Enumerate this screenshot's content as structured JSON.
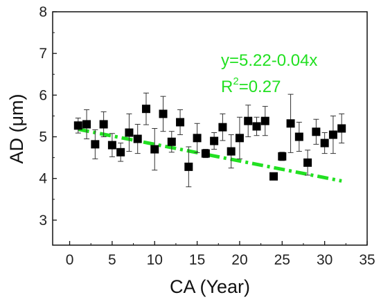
{
  "chart_data": {
    "type": "scatter",
    "xlabel": "CA (Year)",
    "ylabel": "AD (μm)",
    "xlim": [
      -2,
      35
    ],
    "ylim": [
      2.4,
      8
    ],
    "x_ticks": [
      0,
      5,
      10,
      15,
      20,
      25,
      30,
      35
    ],
    "y_ticks": [
      3,
      4,
      5,
      6,
      7,
      8
    ],
    "grid": false,
    "points": [
      {
        "x": 1,
        "y": 5.27,
        "err": 0.18
      },
      {
        "x": 2,
        "y": 5.3,
        "err": 0.35
      },
      {
        "x": 3,
        "y": 4.82,
        "err": 0.35
      },
      {
        "x": 4,
        "y": 5.3,
        "err": 0.3
      },
      {
        "x": 5,
        "y": 4.8,
        "err": 0.28
      },
      {
        "x": 6,
        "y": 4.63,
        "err": 0.22
      },
      {
        "x": 7,
        "y": 5.1,
        "err": 0.45
      },
      {
        "x": 8,
        "y": 4.95,
        "err": 0.35
      },
      {
        "x": 9,
        "y": 5.67,
        "err": 0.38
      },
      {
        "x": 10,
        "y": 4.7,
        "err": 0.5
      },
      {
        "x": 11,
        "y": 5.55,
        "err": 0.42
      },
      {
        "x": 12,
        "y": 4.88,
        "err": 0.25
      },
      {
        "x": 13,
        "y": 5.35,
        "err": 0.3
      },
      {
        "x": 14,
        "y": 4.28,
        "err": 0.48
      },
      {
        "x": 15,
        "y": 4.97,
        "err": 0.35
      },
      {
        "x": 16,
        "y": 4.6,
        "err": 0.1
      },
      {
        "x": 17,
        "y": 4.9,
        "err": 0.2
      },
      {
        "x": 18,
        "y": 5.23,
        "err": 0.32
      },
      {
        "x": 19,
        "y": 4.65,
        "err": 0.4
      },
      {
        "x": 20,
        "y": 4.97,
        "err": 0.5
      },
      {
        "x": 21,
        "y": 5.38,
        "err": 0.38
      },
      {
        "x": 22,
        "y": 5.25,
        "err": 0.22
      },
      {
        "x": 23,
        "y": 5.38,
        "err": 0.35
      },
      {
        "x": 24,
        "y": 4.05,
        "err": 0.0
      },
      {
        "x": 25,
        "y": 4.53,
        "err": 0.1
      },
      {
        "x": 26,
        "y": 5.32,
        "err": 0.7
      },
      {
        "x": 27,
        "y": 5.0,
        "err": 0.35
      },
      {
        "x": 28,
        "y": 4.38,
        "err": 0.3
      },
      {
        "x": 29,
        "y": 5.12,
        "err": 0.3
      },
      {
        "x": 30,
        "y": 4.85,
        "err": 0.25
      },
      {
        "x": 31,
        "y": 5.05,
        "err": 0.45
      },
      {
        "x": 32,
        "y": 5.2,
        "err": 0.35
      }
    ],
    "fit_line": {
      "intercept": 5.22,
      "slope": -0.04,
      "x_range": [
        1,
        32
      ],
      "color": "#22e022",
      "style": "dash-dot"
    },
    "marker_color": "#000000",
    "annotation": {
      "equation": "y=5.22-0.04x",
      "r2_prefix": "R",
      "r2_sup": "2",
      "r2_value": "=0.27",
      "color": "#22e022"
    }
  }
}
